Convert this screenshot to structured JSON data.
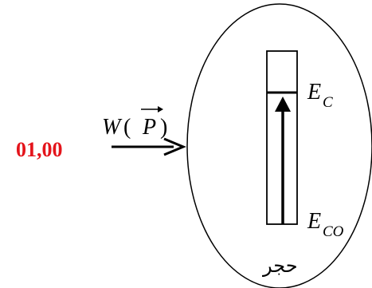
{
  "score": "01,00",
  "work": {
    "symbol": "W",
    "open_paren": "(",
    "vector": "P",
    "close_paren": ")"
  },
  "energy_final": {
    "symbol": "E",
    "subscript": "C"
  },
  "energy_initial": {
    "symbol": "E",
    "subscript": "CO"
  },
  "system_label": "حجر"
}
